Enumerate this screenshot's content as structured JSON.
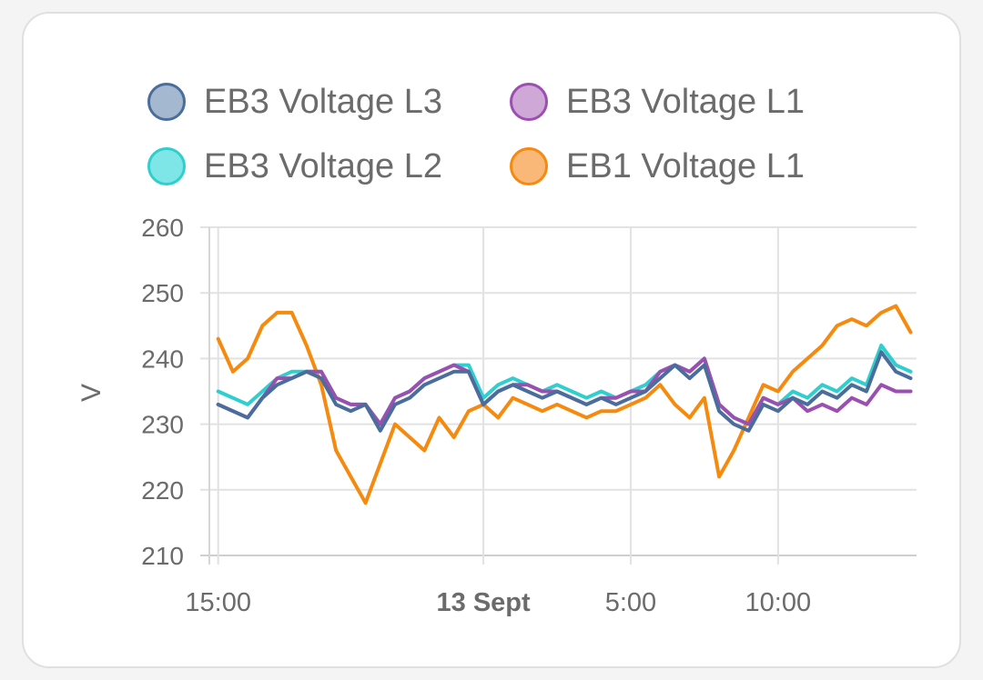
{
  "chart_data": {
    "type": "line",
    "ylabel": "V",
    "ylim": [
      210,
      260
    ],
    "y_ticks": [
      "260",
      "250",
      "240",
      "230",
      "220",
      "210"
    ],
    "x_ticks": [
      {
        "label": "15:00",
        "hour": 0,
        "bold": false
      },
      {
        "label": "13 Sept",
        "hour": 9,
        "bold": true
      },
      {
        "label": "5:00",
        "hour": 14,
        "bold": false
      },
      {
        "label": "10:00",
        "hour": 19,
        "bold": false
      }
    ],
    "x_range_hours": [
      -0.3,
      23.7
    ],
    "grid": true,
    "legend_position": "top",
    "series": [
      {
        "name": "EB3 Voltage L3",
        "color": "#4a6d9c",
        "fill": "#a4b8d0",
        "x": [
          0,
          0.5,
          1,
          1.5,
          2,
          2.5,
          3,
          3.5,
          4,
          4.5,
          5,
          5.5,
          6,
          6.5,
          7,
          7.5,
          8,
          8.5,
          9,
          9.5,
          10,
          10.5,
          11,
          11.5,
          12,
          12.5,
          13,
          13.5,
          14,
          14.5,
          15,
          15.5,
          16,
          16.5,
          17,
          17.5,
          18,
          18.5,
          19,
          19.5,
          20,
          20.5,
          21,
          21.5,
          22,
          22.5,
          23,
          23.5
        ],
        "values": [
          233,
          232,
          231,
          234,
          236,
          237,
          238,
          237,
          233,
          232,
          233,
          229,
          233,
          234,
          236,
          237,
          238,
          238,
          233,
          235,
          236,
          235,
          234,
          235,
          234,
          233,
          234,
          233,
          234,
          235,
          237,
          239,
          237,
          239,
          232,
          230,
          229,
          233,
          232,
          234,
          233,
          235,
          234,
          236,
          235,
          241,
          238,
          237
        ]
      },
      {
        "name": "EB3 Voltage L1",
        "color": "#9b4fb0",
        "fill": "#cfa8d8",
        "x": [
          0,
          0.5,
          1,
          1.5,
          2,
          2.5,
          3,
          3.5,
          4,
          4.5,
          5,
          5.5,
          6,
          6.5,
          7,
          7.5,
          8,
          8.5,
          9,
          9.5,
          10,
          10.5,
          11,
          11.5,
          12,
          12.5,
          13,
          13.5,
          14,
          14.5,
          15,
          15.5,
          16,
          16.5,
          17,
          17.5,
          18,
          18.5,
          19,
          19.5,
          20,
          20.5,
          21,
          21.5,
          22,
          22.5,
          23,
          23.5
        ],
        "values": [
          233,
          232,
          231,
          234,
          237,
          237,
          238,
          238,
          234,
          233,
          233,
          230,
          234,
          235,
          237,
          238,
          239,
          238,
          233,
          235,
          236,
          236,
          235,
          235,
          234,
          233,
          234,
          234,
          235,
          235,
          238,
          239,
          238,
          240,
          233,
          231,
          230,
          234,
          233,
          234,
          232,
          233,
          232,
          234,
          233,
          236,
          235,
          235
        ]
      },
      {
        "name": "EB3 Voltage L2",
        "color": "#2fcfcf",
        "fill": "#7ee6e6",
        "x": [
          0,
          0.5,
          1,
          1.5,
          2,
          2.5,
          3,
          3.5,
          4,
          4.5,
          5,
          5.5,
          6,
          6.5,
          7,
          7.5,
          8,
          8.5,
          9,
          9.5,
          10,
          10.5,
          11,
          11.5,
          12,
          12.5,
          13,
          13.5,
          14,
          14.5,
          15,
          15.5,
          16,
          16.5,
          17,
          17.5,
          18,
          18.5,
          19,
          19.5,
          20,
          20.5,
          21,
          21.5,
          22,
          22.5,
          23,
          23.5
        ],
        "values": [
          235,
          234,
          233,
          235,
          237,
          238,
          238,
          238,
          234,
          233,
          233,
          230,
          234,
          235,
          237,
          238,
          239,
          239,
          234,
          236,
          237,
          236,
          235,
          236,
          235,
          234,
          235,
          234,
          235,
          236,
          238,
          239,
          238,
          240,
          233,
          231,
          230,
          234,
          233,
          235,
          234,
          236,
          235,
          237,
          236,
          242,
          239,
          238
        ]
      },
      {
        "name": "EB1 Voltage L1",
        "color": "#f58a0f",
        "fill": "#f9b877",
        "x": [
          0,
          0.5,
          1,
          1.5,
          2,
          2.5,
          3,
          3.5,
          4,
          4.5,
          5,
          5.5,
          6,
          6.5,
          7,
          7.5,
          8,
          8.5,
          9,
          9.5,
          10,
          10.5,
          11,
          11.5,
          12,
          12.5,
          13,
          13.5,
          14,
          14.5,
          15,
          15.5,
          16,
          16.5,
          17,
          17.5,
          18,
          18.5,
          19,
          19.5,
          20,
          20.5,
          21,
          21.5,
          22,
          22.5,
          23,
          23.5
        ],
        "values": [
          243,
          238,
          240,
          245,
          247,
          247,
          242,
          236,
          226,
          222,
          218,
          224,
          230,
          228,
          226,
          231,
          228,
          232,
          233,
          231,
          234,
          233,
          232,
          233,
          232,
          231,
          232,
          232,
          233,
          234,
          236,
          233,
          231,
          234,
          222,
          226,
          231,
          236,
          235,
          238,
          240,
          242,
          245,
          246,
          245,
          247,
          248,
          244
        ]
      }
    ]
  }
}
